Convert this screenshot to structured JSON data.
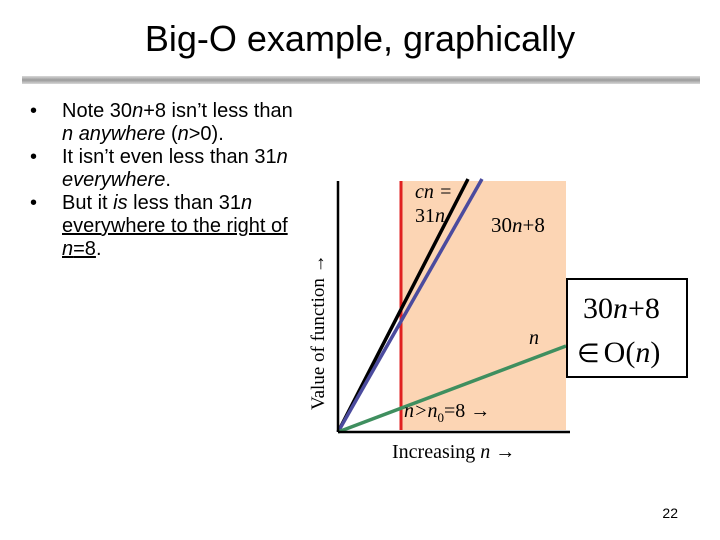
{
  "slide": {
    "title": "Big-O example, graphically",
    "page_number": "22"
  },
  "bullets": [
    {
      "parts": [
        {
          "t": "Note 30",
          "s": "n"
        },
        {
          "t": "n",
          "s": "i"
        },
        {
          "t": "+8 isn’t less than ",
          "s": "n"
        },
        {
          "t": "n",
          "s": "i"
        },
        {
          "t": " ",
          "s": "n"
        },
        {
          "t": "anywhere",
          "s": "i"
        },
        {
          "t": " (",
          "s": "n"
        },
        {
          "t": "n",
          "s": "i"
        },
        {
          "t": ">0).",
          "s": "n"
        }
      ]
    },
    {
      "parts": [
        {
          "t": "It isn’t even less than 31",
          "s": "n"
        },
        {
          "t": "n",
          "s": "i"
        },
        {
          "t": " ",
          "s": "n"
        },
        {
          "t": "everywhere",
          "s": "i"
        },
        {
          "t": ".",
          "s": "n"
        }
      ]
    },
    {
      "parts": [
        {
          "t": "But it ",
          "s": "n"
        },
        {
          "t": "is",
          "s": "i"
        },
        {
          "t": " less than 31",
          "s": "n"
        },
        {
          "t": "n",
          "s": "i"
        },
        {
          "t": " ",
          "s": "n"
        },
        {
          "t": "everywhere to the right of ",
          "s": "u"
        },
        {
          "t": "n",
          "s": "ui"
        },
        {
          "t": "=8",
          "s": "u"
        },
        {
          "t": ".",
          "s": "n"
        }
      ]
    }
  ],
  "diagram": {
    "y_axis_label": "Value of function →",
    "x_axis_label_text": "Increasing ",
    "x_axis_label_var": "n",
    "x_axis_label_arrow": " →",
    "cn_label_line1": "cn =",
    "cn_label_line2": "31n",
    "label_30n8_num": "30",
    "label_30n8_var": "n",
    "label_30n8_rest": "+8",
    "label_n": "n",
    "threshold_n": "n",
    "threshold_op": ">n",
    "threshold_sub": "0",
    "threshold_val": "=8 →",
    "box_line1_num": "30",
    "box_line1_var": "n",
    "box_line1_rest": "+8",
    "box_line2_sym": "∈",
    "box_line2_O": "O(",
    "box_line2_var": "n",
    "box_line2_close": ")",
    "colors": {
      "shade": "#FCD5B4",
      "cn_line": "#4B4B9E",
      "f_line": "#000000",
      "n_line": "#3F8F5F",
      "threshold_line": "#E02020"
    }
  }
}
